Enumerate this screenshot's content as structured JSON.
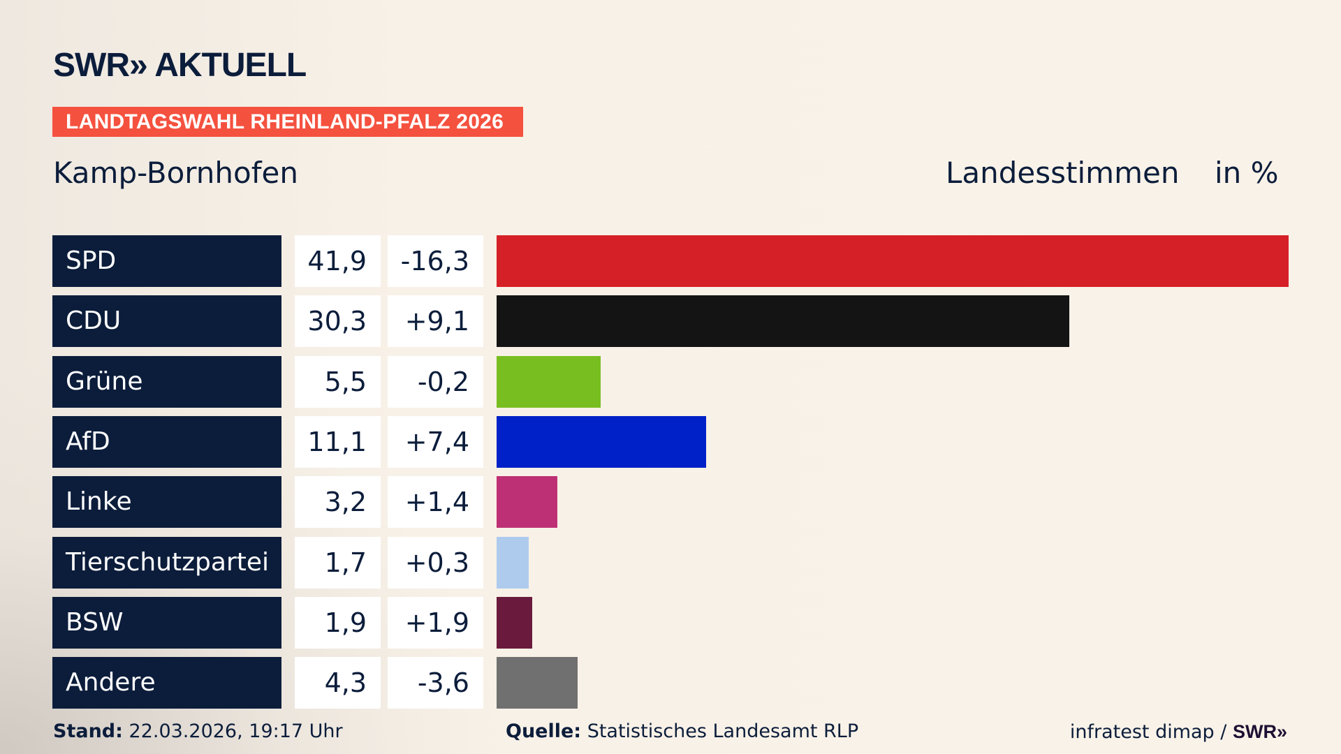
{
  "header": {
    "logo_text": "SWR» AKTUELL",
    "banner": "LANDTAGSWAHL RHEINLAND-PFALZ 2026",
    "place": "Kamp-Bornhofen",
    "measure": "Landesstimmen",
    "unit": "in %"
  },
  "chart_data": {
    "type": "bar",
    "orientation": "horizontal",
    "categories": [
      "SPD",
      "CDU",
      "Grüne",
      "AfD",
      "Linke",
      "Tierschutzpartei",
      "BSW",
      "Andere"
    ],
    "values": [
      41.9,
      30.3,
      5.5,
      11.1,
      3.2,
      1.7,
      1.9,
      4.3
    ],
    "value_labels": [
      "41,9",
      "30,3",
      "5,5",
      "11,1",
      "3,2",
      "1,7",
      "1,9",
      "4,3"
    ],
    "diff_labels": [
      "-16,3",
      "+9,1",
      "-0,2",
      "+7,4",
      "+1,4",
      "+0,3",
      "+1,9",
      "-3,6"
    ],
    "colors": [
      "#d62027",
      "#141414",
      "#78be20",
      "#0021c7",
      "#be3075",
      "#aecbee",
      "#6a1a3d",
      "#707070"
    ],
    "xlim": [
      0,
      41.9
    ]
  },
  "footer": {
    "stand_label": "Stand:",
    "stand_value": "22.03.2026, 19:17 Uhr",
    "source_label": "Quelle:",
    "source_value": "Statistisches Landesamt RLP",
    "credit": "infratest dimap /",
    "credit_logo": "SWR»"
  }
}
